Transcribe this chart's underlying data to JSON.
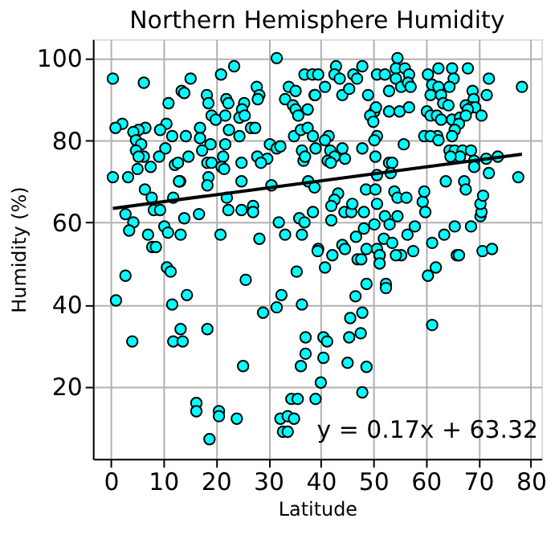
{
  "chart_data": {
    "type": "scatter",
    "title": "Northern Hemisphere Humidity",
    "xlabel": "Latitude",
    "ylabel": "Humidity (%)",
    "xlim": [
      -3.4,
      82
    ],
    "ylim": [
      2.4,
      104.6
    ],
    "xticks": [
      0,
      10,
      20,
      30,
      40,
      50,
      60,
      70,
      80
    ],
    "yticks": [
      20,
      40,
      60,
      80,
      100
    ],
    "grid": true,
    "annotations": [
      "y = 0.17x + 63.32"
    ],
    "series": [
      {
        "marker": "circle",
        "color": "#00ffff",
        "x": [
          0.4,
          6.3,
          23.5,
          31.6,
          21,
          15.2,
          13.5,
          14,
          11,
          18.3,
          18.6,
          22,
          22.4,
          25.4,
          27.8,
          28.3,
          28,
          25,
          21.8,
          19.2,
          20,
          24.5,
          25.5,
          26.7,
          27.5,
          24.5,
          22.5,
          21.8,
          19,
          17,
          17,
          17.4,
          14.3,
          11.7,
          10.6,
          9.4,
          6.6,
          5.3,
          4.3,
          2.2,
          0.9,
          4.8,
          5.8,
          4.8,
          6.3,
          5.3,
          10.4,
          9.2,
          7.6,
          5.1,
          0.4,
          3.3,
          12.2,
          12.8,
          14.8,
          18.4,
          19.2,
          21.4,
          21.1,
          21.6,
          18.6,
          13.2,
          13,
          24.9,
          24.9,
          27.9,
          29.8,
          28.6,
          30.6,
          6.5,
          7.8,
          11.9,
          18.4,
          22.1,
          22.4,
          27.1,
          27.1,
          24.9,
          8.2,
          9.4,
          2.8,
          4.3,
          3.5,
          7.1,
          10.2,
          10.9,
          13.3,
          14,
          16.8,
          20.9,
          28.3,
          32,
          33.2,
          35.9,
          36.9,
          36.4,
          7.9,
          8.6,
          39.5,
          30.3,
          31.6,
          33.2,
          33.9,
          34.7,
          35.2,
          35.7,
          37.5,
          36.9,
          38.4,
          35.2,
          34.9,
          36.2,
          32.3,
          36.4,
          36.7,
          37,
          37.6,
          39,
          37.5,
          38.8,
          54.6,
          42.9,
          47.9,
          39.5,
          42.6,
          43.6,
          46.2,
          46.9,
          50.7,
          52.2,
          54.3,
          56,
          56.8,
          54.3,
          55.3,
          56.6,
          57.1,
          53,
          60.4,
          62.4,
          65,
          68,
          65.3,
          72,
          78.3,
          61.2,
          62.4,
          64.5,
          60.9,
          62.9,
          68.9,
          71.6,
          69.1,
          63.3,
          64.3,
          67.6,
          68.6,
          69.4,
          68,
          53,
          55,
          56.8,
          50.2,
          50.5,
          49.4,
          50,
          60.2,
          60.9,
          62.1,
          62.9,
          65,
          66.5,
          67.6,
          70.6,
          66.3,
          65.5,
          65,
          62.2,
          59.7,
          60.9,
          50.7,
          50.2,
          49,
          44.1,
          45.4,
          40.8,
          38.9,
          41.5,
          40.8,
          38.5,
          41.8,
          44.1,
          42.6,
          41.3,
          41.9,
          44.6,
          47.9,
          50.4,
          55.8,
          62.4,
          64.5,
          65.5,
          67,
          68.6,
          66.5,
          64.7,
          69.2,
          71.5,
          73.7,
          72,
          77.6,
          69.2,
          63.8,
          67.3,
          67.6,
          53,
          53.6,
          53.3,
          50.7,
          38.8,
          43.3,
          42.6,
          42,
          38.5,
          42,
          44.5,
          45.8,
          46,
          48.2,
          48.6,
          50.4,
          50.7,
          54,
          54.6,
          56.3,
          59.4,
          59.9,
          59.7,
          52.2,
          54.6,
          50.2,
          53.1,
          57.9,
          63.5,
          65.5,
          68.6,
          70.4,
          70.6,
          70.4,
          70.9,
          48.2,
          46.7,
          48.7,
          50.7,
          52,
          53.6,
          56.5,
          61.2,
          44.1,
          44.6,
          39.4,
          42.2,
          51.2,
          55.3,
          57.6,
          65.9,
          70.8,
          72.6,
          2.8,
          1,
          4.1,
          10.7,
          11.4,
          11.7,
          14.5,
          13.3,
          11.9,
          13.7,
          18.4,
          25.7,
          29,
          31.6,
          32.5,
          35.4,
          36.4,
          37.1,
          37.1,
          36.2,
          25.2,
          16.3,
          16.3,
          20.6,
          20.6,
          24,
          18.8,
          32.3,
          33.7,
          34.9,
          32.8,
          33.7,
          34.4,
          35.6,
          39,
          40,
          47,
          47.7,
          51.2,
          51.2,
          54.3,
          40.8,
          66.3,
          60.4,
          61.9,
          48.7,
          52.4,
          52.4,
          46.6,
          47.9,
          45.6,
          61.2,
          47.6,
          45.4,
          40.5,
          41.2,
          40.5,
          45.1,
          48.7,
          47.9
        ],
        "values": [
          95,
          94,
          98,
          100,
          96,
          95,
          92,
          91.5,
          89,
          91,
          89,
          90,
          89,
          89,
          93,
          91,
          90,
          87.5,
          86,
          86,
          85,
          85.5,
          86,
          83,
          83,
          81,
          82.5,
          79,
          79,
          83,
          80.5,
          77.5,
          81,
          81,
          84,
          82.5,
          83,
          82.5,
          82,
          84,
          83,
          80,
          79,
          77.5,
          76,
          76,
          78,
          76,
          73.5,
          73,
          71,
          71,
          74,
          74.5,
          76,
          74.5,
          74.5,
          76,
          73.5,
          73,
          71,
          70,
          70,
          74.5,
          70,
          76,
          75.5,
          74.5,
          69,
          68,
          66,
          66,
          69,
          66,
          63,
          64,
          62.5,
          63,
          63,
          63,
          62,
          60,
          58,
          57,
          59,
          57.5,
          57,
          61,
          62,
          57,
          56,
          60,
          57,
          61,
          60,
          57,
          54,
          54,
          53.5,
          79,
          78,
          90,
          93,
          88.5,
          87.5,
          86,
          87.5,
          96,
          96,
          92,
          81,
          82.5,
          78.5,
          77.5,
          75,
          76,
          70,
          78,
          83,
          91,
          100,
          98,
          98,
          96,
          96,
          95,
          96,
          95,
          96,
          96,
          97.5,
          97.5,
          96,
          95,
          93,
          94,
          93,
          92,
          96,
          97.5,
          97.5,
          97.5,
          95,
          95,
          93,
          93.5,
          93,
          93,
          91,
          91,
          92,
          91,
          90,
          89,
          88.5,
          88.5,
          88,
          88,
          87.5,
          87,
          87,
          88,
          87,
          88,
          86,
          84.5,
          87,
          86,
          86,
          85,
          85,
          85.5,
          86,
          86,
          84,
          82.5,
          81,
          81,
          81,
          81,
          81,
          80,
          91,
          91,
          92.5,
          93,
          91,
          81,
          80,
          81,
          77.5,
          78,
          76,
          75,
          74.5,
          75.5,
          78,
          76,
          79,
          80,
          77.5,
          77.5,
          77.5,
          77.5,
          76,
          76,
          75,
          75.5,
          76,
          72,
          71,
          73.5,
          70,
          70,
          68,
          74.5,
          74.5,
          72,
          71.5,
          68.5,
          67,
          65.5,
          64,
          62.5,
          60.5,
          62.5,
          62.5,
          64.5,
          62.5,
          68,
          68,
          64.5,
          67.5,
          66,
          66,
          65,
          62.5,
          67.5,
          61.5,
          61.5,
          59.5,
          59.5,
          59,
          57,
          59,
          59,
          61.5,
          62.5,
          64.5,
          66.5,
          58.5,
          56.5,
          53.5,
          53.5,
          56,
          55,
          57,
          55,
          54.5,
          53.5,
          53,
          52,
          52,
          52,
          53,
          52,
          53,
          53.5,
          47,
          41,
          31,
          49,
          48,
          40,
          42.3,
          34,
          31,
          31,
          34,
          46,
          38,
          39.3,
          42.3,
          48,
          40,
          32,
          28,
          25,
          25,
          16,
          14,
          14,
          12.8,
          12.2,
          7.2,
          12.2,
          12.8,
          12.2,
          9,
          9,
          17,
          17,
          17,
          21,
          51,
          51,
          52,
          50,
          52,
          49,
          52,
          47,
          49,
          45,
          45,
          44,
          42,
          38,
          36.7,
          35,
          33,
          32,
          32,
          31,
          27,
          25.8,
          24.8,
          18.6
        ]
      },
      {
        "type": "line",
        "color": "#000000",
        "x": [
          0.4,
          78.3
        ],
        "values": [
          63.4,
          76.6
        ]
      }
    ]
  }
}
